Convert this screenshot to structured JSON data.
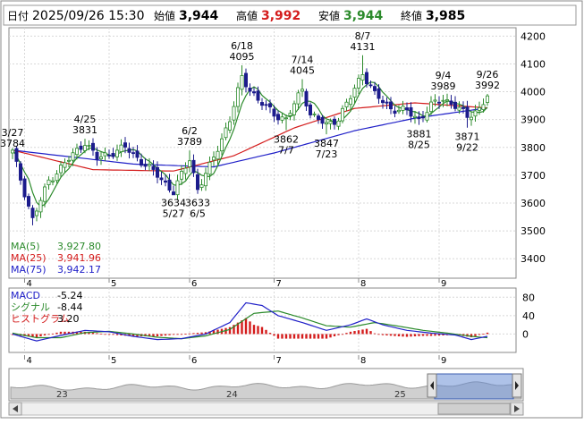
{
  "header": {
    "date_label": "日付",
    "datetime": "2025/09/26 15:30",
    "open_label": "始値",
    "open_value": "3,944",
    "high_label": "高値",
    "high_value": "3,992",
    "low_label": "安値",
    "low_value": "3,944",
    "close_label": "終値",
    "close_value": "3,985"
  },
  "colors": {
    "up": "#2b8a2b",
    "down": "#1c1c8c",
    "ma5": "#2b8a2b",
    "ma25": "#d41c1c",
    "ma75": "#2020c8",
    "macd": "#2020c8",
    "signal": "#2b8a2b",
    "hist": "#d41c1c",
    "high_text": "#d41c1c",
    "low_text": "#2b8a2b"
  },
  "legend": {
    "ma5_label": "MA(5)",
    "ma5_value": "3,927.80",
    "ma25_label": "MA(25)",
    "ma25_value": "3,941.96",
    "ma75_label": "MA(75)",
    "ma75_value": "3,942.17"
  },
  "macd_legend": {
    "macd_label": "MACD",
    "macd_value": "-5.24",
    "signal_label": "シグナル",
    "signal_value": "-8.44",
    "hist_label": "ヒストグラム",
    "hist_value": "3.20"
  },
  "chart_data": [
    {
      "type": "candlestick",
      "y_ticks": [
        3400,
        3500,
        3600,
        3700,
        3800,
        3900,
        4000,
        4100,
        4200
      ],
      "ylim": [
        3330,
        4230
      ],
      "x_month_labels": [
        "4",
        "5",
        "6",
        "7",
        "8",
        "9"
      ],
      "annotations": [
        {
          "date": "3/27",
          "value": 3784
        },
        {
          "date": "4/25",
          "value": 3831
        },
        {
          "date": "6/2",
          "value": 3789
        },
        {
          "date": "6/18",
          "value": 4095
        },
        {
          "date": "7/14",
          "value": 4045
        },
        {
          "date": "8/7",
          "value": 4131
        },
        {
          "date": "9/4",
          "value": 3989
        },
        {
          "date": "9/26",
          "value": 3992
        },
        {
          "date": "5/27",
          "value": 3634
        },
        {
          "date": "6/5",
          "value": 3633
        },
        {
          "date": "7/7",
          "value": 3862
        },
        {
          "date": "7/23",
          "value": 3847
        },
        {
          "date": "8/25",
          "value": 3881
        },
        {
          "date": "9/22",
          "value": 3871
        }
      ],
      "anchors": [
        [
          0,
          3784
        ],
        [
          5,
          3540
        ],
        [
          9,
          3680
        ],
        [
          18,
          3820
        ],
        [
          21,
          3760
        ],
        [
          28,
          3800
        ],
        [
          36,
          3700
        ],
        [
          40,
          3640
        ],
        [
          44,
          3760
        ],
        [
          46,
          3650
        ],
        [
          49,
          3730
        ],
        [
          54,
          3900
        ],
        [
          57,
          4050
        ],
        [
          61,
          3970
        ],
        [
          65,
          3920
        ],
        [
          68,
          3900
        ],
        [
          72,
          4010
        ],
        [
          74,
          3920
        ],
        [
          78,
          3880
        ],
        [
          81,
          3905
        ],
        [
          84,
          3980
        ],
        [
          87,
          4070
        ],
        [
          90,
          3990
        ],
        [
          94,
          3940
        ],
        [
          98,
          3930
        ],
        [
          101,
          3900
        ],
        [
          104,
          3950
        ],
        [
          107,
          3975
        ],
        [
          110,
          3950
        ],
        [
          113,
          3910
        ],
        [
          116,
          3940
        ],
        [
          118,
          3985
        ]
      ],
      "ma25_anchors": [
        [
          0,
          3790
        ],
        [
          20,
          3720
        ],
        [
          40,
          3715
        ],
        [
          55,
          3770
        ],
        [
          70,
          3870
        ],
        [
          85,
          3940
        ],
        [
          100,
          3960
        ],
        [
          118,
          3942
        ]
      ],
      "ma75_anchors": [
        [
          0,
          3790
        ],
        [
          30,
          3740
        ],
        [
          50,
          3730
        ],
        [
          65,
          3780
        ],
        [
          85,
          3860
        ],
        [
          100,
          3905
        ],
        [
          118,
          3942
        ]
      ]
    },
    {
      "type": "macd",
      "y_ticks": [
        80,
        40,
        0
      ],
      "ylim": [
        -40,
        100
      ],
      "x_month_labels": [
        "4",
        "5",
        "6",
        "7",
        "8",
        "9"
      ],
      "macd_anchors": [
        [
          0,
          0
        ],
        [
          6,
          -15
        ],
        [
          12,
          -3
        ],
        [
          18,
          8
        ],
        [
          24,
          5
        ],
        [
          30,
          -5
        ],
        [
          36,
          -12
        ],
        [
          42,
          -10
        ],
        [
          48,
          0
        ],
        [
          54,
          25
        ],
        [
          58,
          68
        ],
        [
          62,
          62
        ],
        [
          66,
          40
        ],
        [
          72,
          25
        ],
        [
          78,
          8
        ],
        [
          84,
          20
        ],
        [
          88,
          33
        ],
        [
          92,
          20
        ],
        [
          98,
          8
        ],
        [
          104,
          2
        ],
        [
          110,
          -2
        ],
        [
          114,
          -12
        ],
        [
          118,
          -5
        ]
      ],
      "signal_anchors": [
        [
          0,
          2
        ],
        [
          6,
          -8
        ],
        [
          12,
          -8
        ],
        [
          18,
          3
        ],
        [
          24,
          6
        ],
        [
          30,
          0
        ],
        [
          36,
          -7
        ],
        [
          42,
          -10
        ],
        [
          48,
          -4
        ],
        [
          54,
          10
        ],
        [
          60,
          45
        ],
        [
          66,
          50
        ],
        [
          72,
          35
        ],
        [
          78,
          18
        ],
        [
          84,
          15
        ],
        [
          90,
          25
        ],
        [
          96,
          17
        ],
        [
          102,
          8
        ],
        [
          108,
          2
        ],
        [
          114,
          -5
        ],
        [
          118,
          -8
        ]
      ]
    }
  ],
  "navigator": {
    "labels": [
      "23",
      "24",
      "25"
    ]
  }
}
